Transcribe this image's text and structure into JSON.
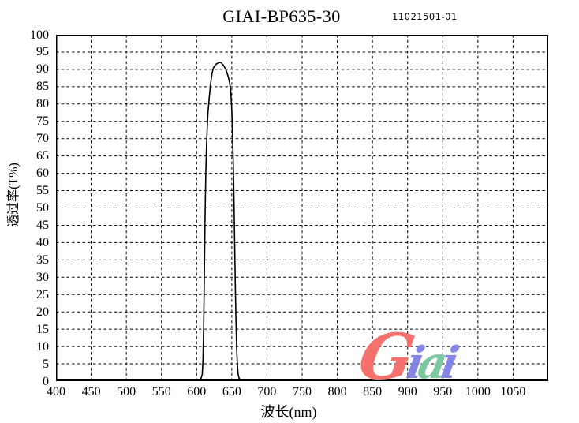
{
  "header": {
    "title": "GIAI-BP635-30",
    "code": "11021501-01"
  },
  "chart_data": {
    "type": "line",
    "title": "GIAI-BP635-30",
    "subtitle_code": "11021501-01",
    "xlabel": "波长(nm)",
    "ylabel": "透过率(T%)",
    "xlim": [
      400,
      1100
    ],
    "ylim": [
      0,
      100
    ],
    "x_ticks": [
      400,
      450,
      500,
      550,
      600,
      650,
      700,
      750,
      800,
      850,
      900,
      950,
      1000,
      1050
    ],
    "y_ticks": [
      0,
      5,
      10,
      15,
      20,
      25,
      30,
      35,
      40,
      45,
      50,
      55,
      60,
      65,
      70,
      75,
      80,
      85,
      90,
      95,
      100
    ],
    "grid": "dashed, both axes, black",
    "legend": "none",
    "line_color": "#000000",
    "series": [
      {
        "name": "transmittance",
        "points": [
          [
            400,
            0
          ],
          [
            450,
            0
          ],
          [
            500,
            0
          ],
          [
            550,
            0
          ],
          [
            580,
            0
          ],
          [
            600,
            0
          ],
          [
            604,
            0.2
          ],
          [
            606,
            0.6
          ],
          [
            608,
            2
          ],
          [
            609,
            6
          ],
          [
            610,
            16
          ],
          [
            611,
            32
          ],
          [
            612,
            48
          ],
          [
            613,
            60
          ],
          [
            614,
            68
          ],
          [
            615,
            73
          ],
          [
            616,
            77
          ],
          [
            618,
            82
          ],
          [
            620,
            86
          ],
          [
            622,
            89
          ],
          [
            624,
            90.5
          ],
          [
            627,
            91.4
          ],
          [
            630,
            91.8
          ],
          [
            632,
            92
          ],
          [
            635,
            91.9
          ],
          [
            638,
            91.2
          ],
          [
            641,
            90.2
          ],
          [
            643,
            89.2
          ],
          [
            645,
            87.8
          ],
          [
            647,
            86
          ],
          [
            648,
            84.5
          ],
          [
            649,
            82
          ],
          [
            650,
            78
          ],
          [
            651,
            72
          ],
          [
            652,
            64
          ],
          [
            653,
            54
          ],
          [
            654,
            41
          ],
          [
            655,
            28
          ],
          [
            656,
            17
          ],
          [
            657,
            9
          ],
          [
            658,
            4.5
          ],
          [
            659,
            2
          ],
          [
            660,
            1
          ],
          [
            662,
            0.4
          ],
          [
            665,
            0.1
          ],
          [
            670,
            0
          ],
          [
            700,
            0
          ],
          [
            750,
            0
          ],
          [
            800,
            0
          ],
          [
            850,
            0
          ],
          [
            900,
            0
          ],
          [
            950,
            0
          ],
          [
            1000,
            0
          ],
          [
            1050,
            0
          ],
          [
            1100,
            0
          ]
        ],
        "peak": {
          "wavelength_nm": 632,
          "transmittance_pct": 92
        }
      }
    ]
  },
  "logo": {
    "text": "Giai",
    "letters": [
      {
        "char": "G",
        "color": "#f4716e"
      },
      {
        "char": "i",
        "color": "#8585e8"
      },
      {
        "char": "a",
        "color": "#7cc8a0"
      },
      {
        "char": "i",
        "color": "#8585e8"
      }
    ]
  }
}
